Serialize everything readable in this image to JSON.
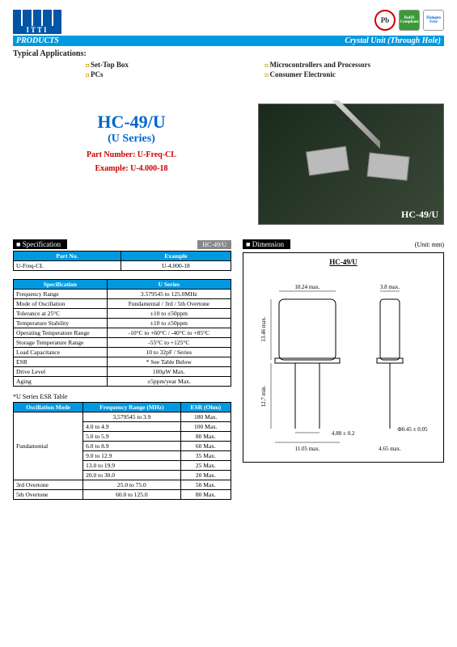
{
  "header": {
    "products": "PRODUCTS",
    "category": "Crystal Unit (Through Hole)",
    "badges": {
      "pb": "Pb",
      "rohs": "RoHS Compliant",
      "halogen": "Halogen Free"
    }
  },
  "applications": {
    "title": "Typical Applications:",
    "col1": [
      "Set-Top Box",
      "PCs"
    ],
    "col2": [
      "Microcontrollers and Processors",
      "Consumer Electronic"
    ]
  },
  "hero": {
    "model": "HC-49/U",
    "series": "(U Series)",
    "partnum": "Part Number: U-Freq-CL",
    "example": "Example: U-4.000-18",
    "photo_label": "HC-49/U"
  },
  "spec_section": {
    "title": "Specification",
    "tag": "HC-49/U"
  },
  "partno_table": {
    "headers": [
      "Part No.",
      "Example"
    ],
    "row": [
      "U-Freq-CL",
      "U-4.000-18"
    ]
  },
  "spec_table": {
    "headers": [
      "Specification",
      "U Series"
    ],
    "rows": [
      [
        "Frequency Range",
        "3.579545 to 125.0MHz"
      ],
      [
        "Mode of Oscillation",
        "Fundamental / 3rd / 5th Overtone"
      ],
      [
        "Tolerance at 25°C",
        "±10 to ±50ppm"
      ],
      [
        "Temperature Stability",
        "±10 to ±50ppm"
      ],
      [
        "Operating Temperature Range",
        "-10°C to +60°C / -40°C to +85°C"
      ],
      [
        "Storage Temperature Range",
        "-55°C to +125°C"
      ],
      [
        "Load Capacitance",
        "10 to 32pF / Series"
      ],
      [
        "ESR",
        "* See Table Below"
      ],
      [
        "Drive Level",
        "100µW Max."
      ],
      [
        "Aging",
        "±5ppm/year Max."
      ]
    ]
  },
  "esr": {
    "title": "*U Series ESR Table",
    "headers": [
      "Oscillation Mode",
      "Frequency Range (MHz)",
      "ESR (Ohm)"
    ],
    "rows": [
      [
        "Fundamental",
        "3,579545 to 3.9",
        "180 Max."
      ],
      [
        "",
        "4.0 to 4.9",
        "100 Max."
      ],
      [
        "",
        "5.0 to 5.9",
        "80 Max."
      ],
      [
        "",
        "6.0 to 8.9",
        "60 Max."
      ],
      [
        "",
        "9.0 to 12.9",
        "35 Max."
      ],
      [
        "",
        "13.0 to 19.9",
        "25 Max."
      ],
      [
        "",
        "20.0 to 30.0",
        "20 Max."
      ],
      [
        "3rd Overtone",
        "25.0 to 75.0",
        "50 Max."
      ],
      [
        "5th Overtone",
        "60.0 to 125.0",
        "80 Max."
      ]
    ]
  },
  "dimension": {
    "title": "Dimension",
    "unit": "(Unit: mm)",
    "label": "HC-49/U",
    "dims": {
      "width_top": "10.24 max.",
      "side_w": "3.8 max.",
      "height": "13.46 max.",
      "lead_len": "12.7 min.",
      "lead_pitch": "4.88 ± 0.2",
      "base_w": "11.05 max.",
      "lead_dia": "Φ0.45 ± 0.05",
      "side_base": "4.65 max."
    }
  }
}
